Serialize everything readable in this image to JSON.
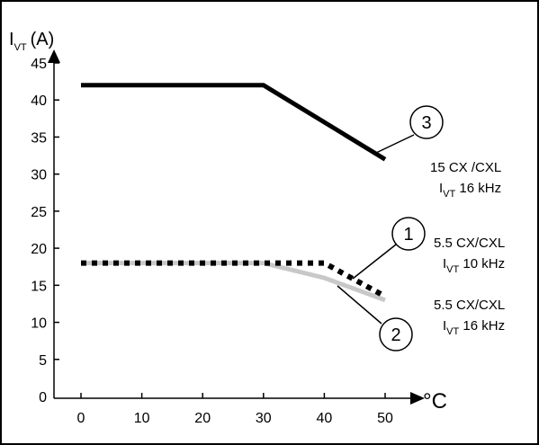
{
  "chart_data": {
    "type": "line",
    "y_axis_label": {
      "main": "I",
      "sub": "VT",
      "unit": "(A)"
    },
    "x_axis_unit": "°C",
    "xlim": [
      0,
      50
    ],
    "ylim": [
      0,
      45
    ],
    "x_ticks": [
      "0",
      "10",
      "20",
      "30",
      "40",
      "50"
    ],
    "y_ticks": [
      "0",
      "5",
      "10",
      "15",
      "20",
      "25",
      "30",
      "35",
      "40",
      "45"
    ],
    "grid": false,
    "series": [
      {
        "id": "3",
        "style": "solid-black",
        "color": "#000000",
        "x": [
          0,
          30,
          50
        ],
        "y": [
          42,
          42,
          32
        ],
        "callout": "3",
        "label": {
          "line1": "15 CX /CXL",
          "line2_main": "I",
          "line2_sub": "VT",
          "line2_rest": " 16 kHz"
        }
      },
      {
        "id": "1",
        "style": "dotted-black",
        "color": "#000000",
        "x": [
          0,
          40,
          50
        ],
        "y": [
          18,
          18,
          13.5
        ],
        "callout": "1",
        "label": {
          "line1": "5.5 CX/CXL",
          "line2_main": "I",
          "line2_sub": "VT",
          "line2_rest": " 10 kHz"
        }
      },
      {
        "id": "2",
        "style": "solid-grey",
        "color": "#c8c8c8",
        "x": [
          0,
          30,
          40,
          50
        ],
        "y": [
          18,
          18,
          16,
          13
        ],
        "callout": "2",
        "label": {
          "line1": "5.5 CX/CXL",
          "line2_main": "I",
          "line2_sub": "VT",
          "line2_rest": " 16 kHz"
        }
      }
    ]
  }
}
